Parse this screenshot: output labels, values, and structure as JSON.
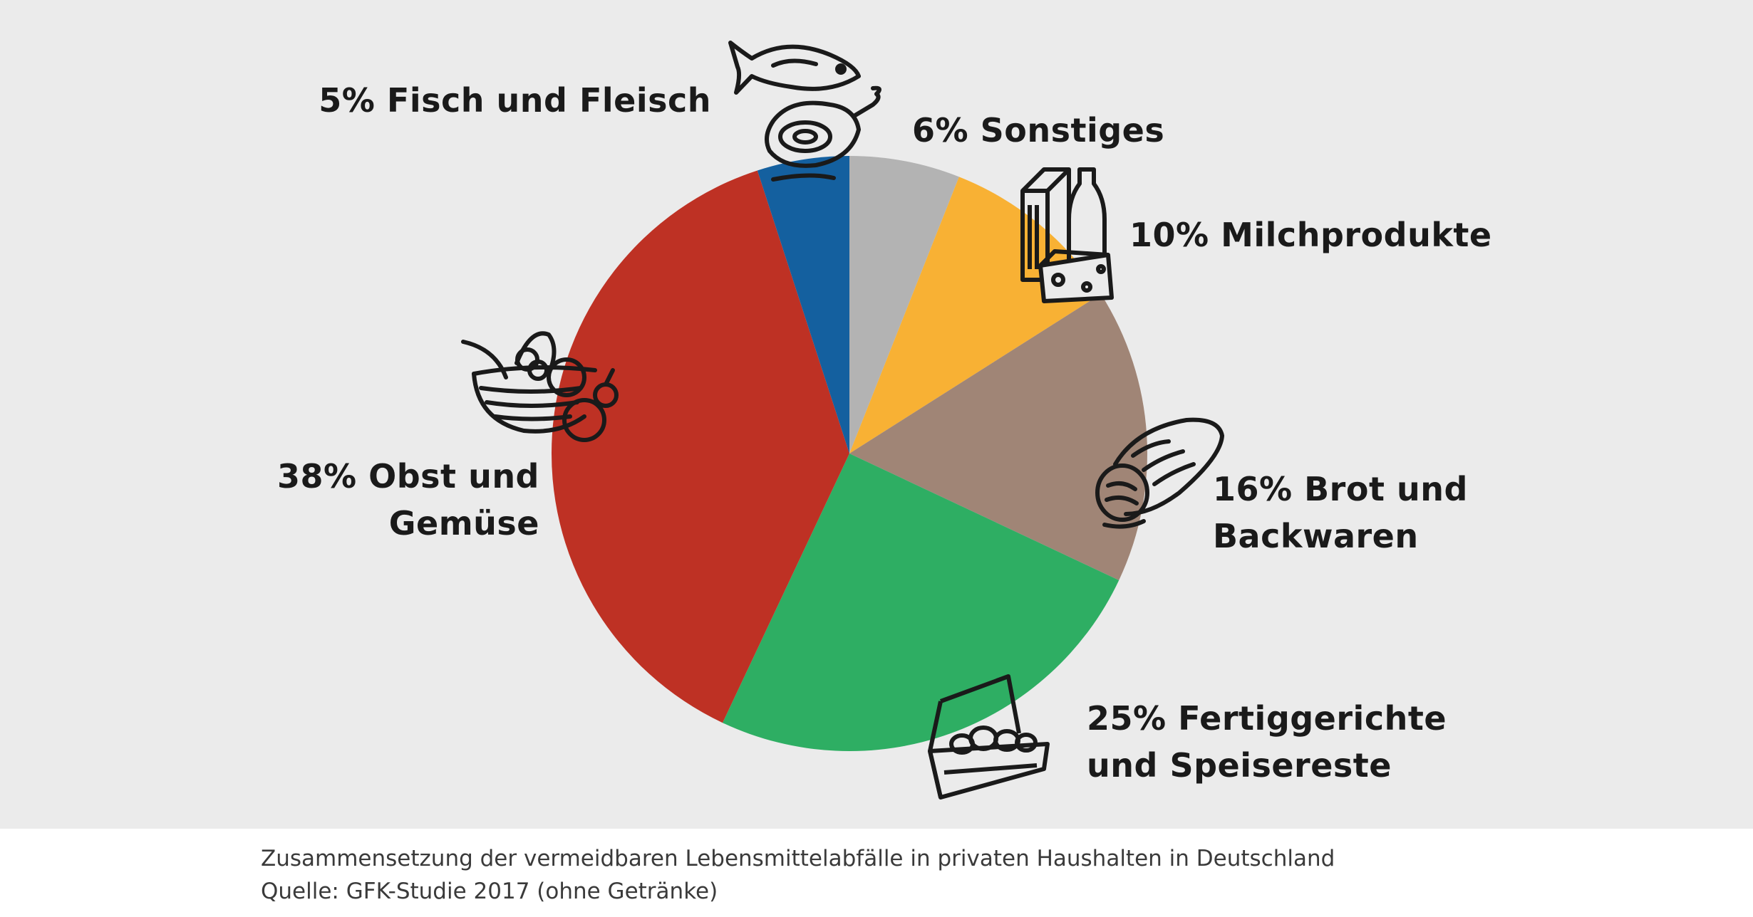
{
  "chart_data": {
    "type": "pie",
    "start_angle_deg": 0,
    "direction": "clockwise",
    "slices": [
      {
        "name": "Sonstiges",
        "value": 6,
        "color": "#b3b3b3",
        "label_lines": [
          "6% Sonstiges"
        ]
      },
      {
        "name": "Milchprodukte",
        "value": 10,
        "color": "#f8b134",
        "label_lines": [
          "10% Milchprodukte"
        ]
      },
      {
        "name": "Brot und Backwaren",
        "value": 16,
        "color": "#a08576",
        "label_lines": [
          "16% Brot und",
          "Backwaren"
        ]
      },
      {
        "name": "Fertiggerichte und Speisereste",
        "value": 25,
        "color": "#2eae63",
        "label_lines": [
          "25% Fertiggerichte",
          "und Speisereste"
        ]
      },
      {
        "name": "Obst und Gemüse",
        "value": 38,
        "color": "#be3124",
        "label_lines": [
          "38% Obst und",
          "Gemüse"
        ]
      },
      {
        "name": "Fisch und Fleisch",
        "value": 5,
        "color": "#14609f",
        "label_lines": [
          "5% Fisch und Fleisch"
        ]
      }
    ],
    "icons": [
      "fish-and-ham-icon",
      "milk-carton-and-cheese-icon",
      "bread-loaf-icon",
      "lunchbox-icon",
      "fruit-basket-icon"
    ]
  },
  "caption": {
    "line1": "Zusammensetzung der vermeidbaren Lebensmittelabfälle in privaten Haushalten in Deutschland",
    "line2": "Quelle: GFK-Studie 2017 (ohne Getränke)"
  }
}
